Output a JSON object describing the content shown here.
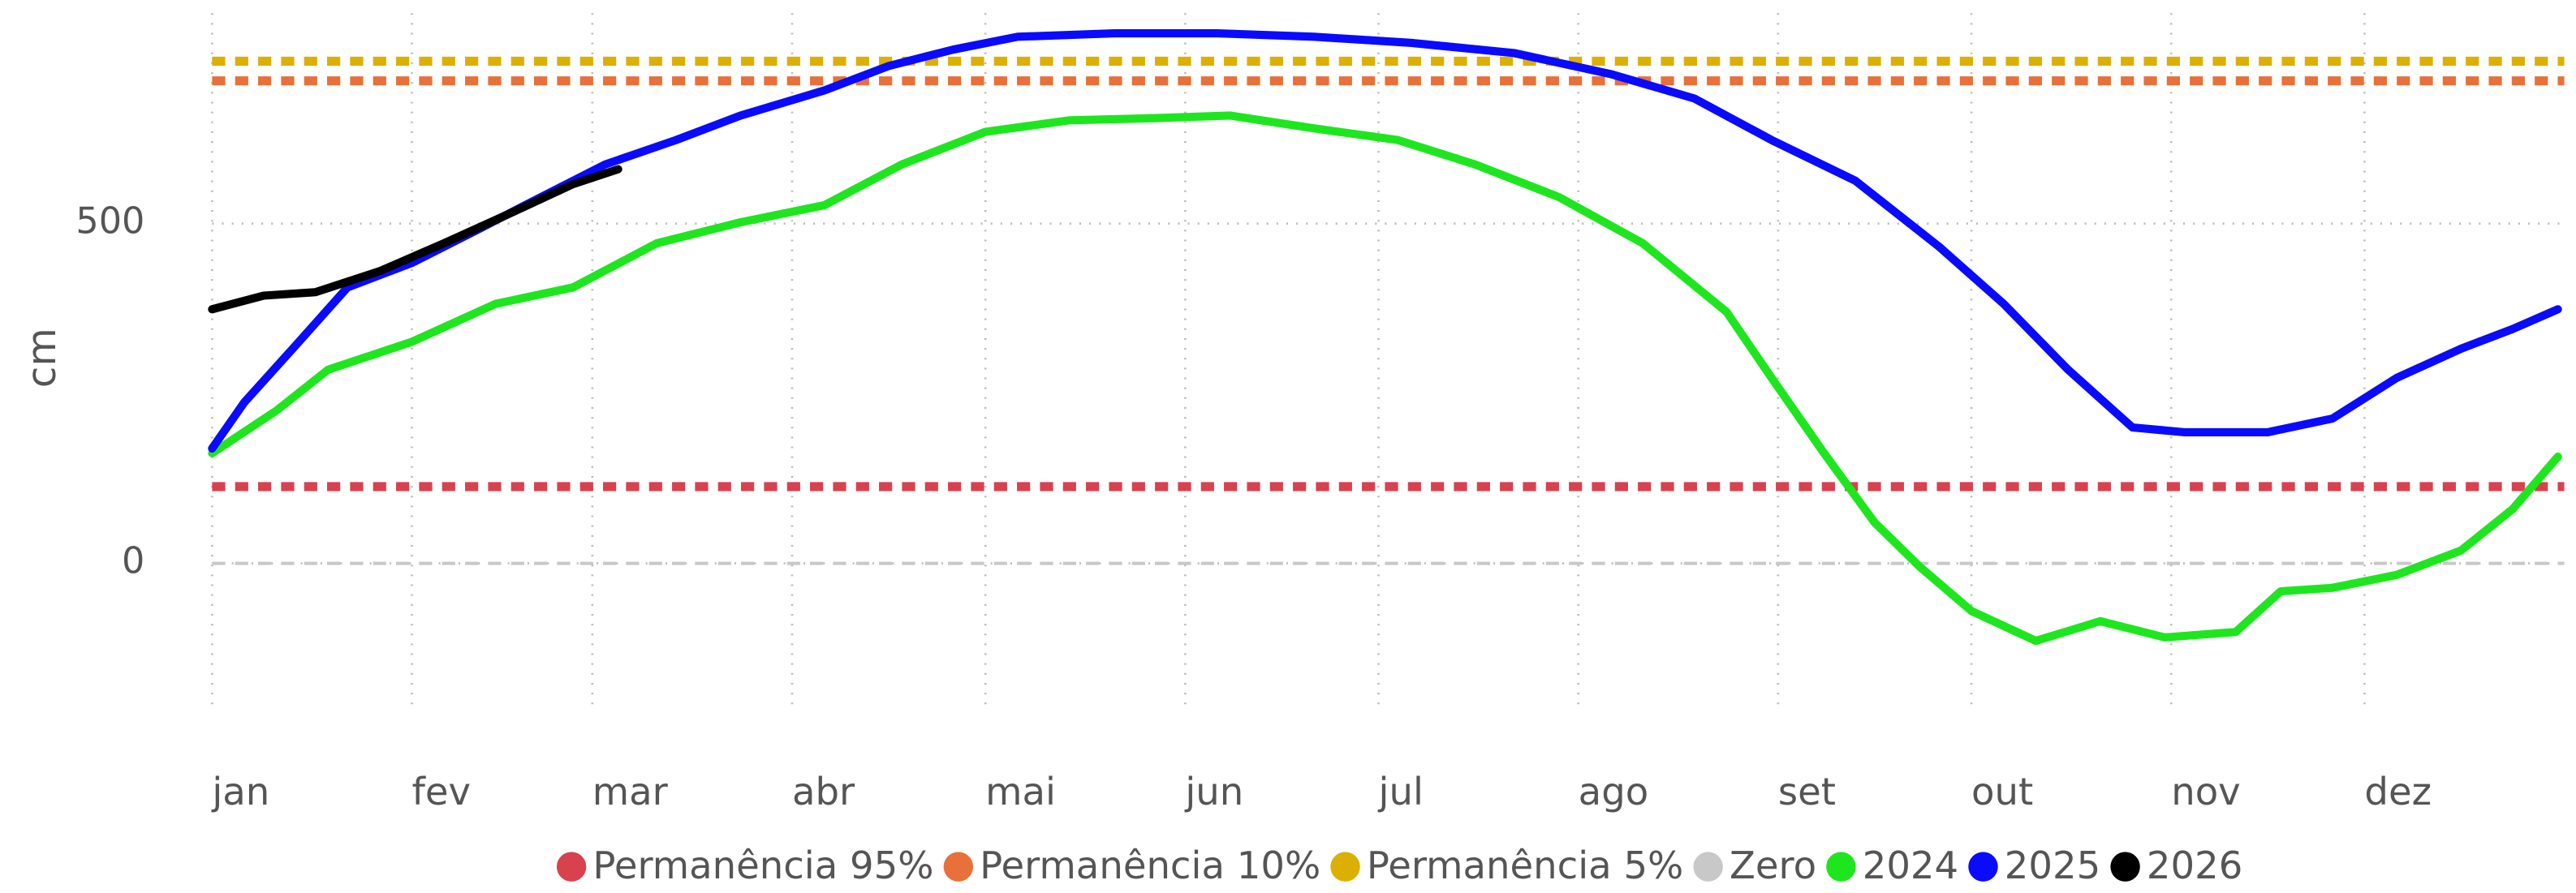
{
  "chart_data": {
    "type": "line",
    "y_label": "cm",
    "xlim": [
      0,
      365
    ],
    "xticks": [
      {
        "value": 0,
        "label": "jan"
      },
      {
        "value": 31,
        "label": "fev"
      },
      {
        "value": 59,
        "label": "mar"
      },
      {
        "value": 90,
        "label": "abr"
      },
      {
        "value": 120,
        "label": "mai"
      },
      {
        "value": 151,
        "label": "jun"
      },
      {
        "value": 181,
        "label": "jul"
      },
      {
        "value": 212,
        "label": "ago"
      },
      {
        "value": 243,
        "label": "set"
      },
      {
        "value": 273,
        "label": "out"
      },
      {
        "value": 304,
        "label": "nov"
      },
      {
        "value": 334,
        "label": "dez"
      }
    ],
    "ylim": [
      -200,
      800
    ],
    "yticks": [
      0,
      500
    ],
    "grid": true,
    "legend": "bottom",
    "series": [
      {
        "name": "Permanência 95%",
        "color": "#d9414e",
        "value": 113,
        "dashed": true
      },
      {
        "name": "Permanência 10%",
        "color": "#e8703a",
        "value": 710,
        "dashed": true
      },
      {
        "name": "Permanência 5%",
        "color": "#dcb000",
        "value": 739,
        "dashed": true
      },
      {
        "name": "Zero",
        "color": "#c8c8c8",
        "value": 0,
        "dashed": true
      },
      {
        "name": "2024",
        "color": "#1ee61e",
        "x": [
          0,
          10,
          18,
          31,
          44,
          56,
          69,
          82,
          95,
          107,
          120,
          133,
          146,
          158,
          171,
          184,
          196,
          209,
          222,
          235,
          242,
          250,
          258,
          265,
          273,
          283,
          293,
          303,
          314,
          321,
          329,
          339,
          349,
          357,
          364
        ],
        "values": [
          162,
          225,
          285,
          326,
          382,
          406,
          471,
          502,
          527,
          587,
          635,
          652,
          655,
          659,
          640,
          623,
          587,
          539,
          471,
          370,
          273,
          164,
          60,
          -5,
          -70,
          -114,
          -85,
          -109,
          -101,
          -41,
          -36,
          -17,
          19,
          80,
          157
        ]
      },
      {
        "name": "2025",
        "color": "#0a0aff",
        "x": [
          0,
          5,
          13,
          21,
          31,
          41,
          51,
          61,
          72,
          82,
          95,
          105,
          115,
          125,
          140,
          156,
          171,
          186,
          202,
          217,
          230,
          242,
          255,
          268,
          278,
          288,
          298,
          306,
          319,
          329,
          339,
          349,
          357,
          364
        ],
        "values": [
          169,
          237,
          321,
          406,
          442,
          490,
          539,
          587,
          623,
          659,
          696,
          732,
          756,
          775,
          780,
          780,
          775,
          766,
          751,
          720,
          684,
          623,
          563,
          466,
          382,
          285,
          200,
          193,
          193,
          213,
          273,
          316,
          345,
          374
        ]
      },
      {
        "name": "2026",
        "color": "#000000",
        "x": [
          0,
          8,
          16,
          26,
          36,
          46,
          56,
          63
        ],
        "values": [
          374,
          394,
          399,
          430,
          471,
          514,
          558,
          580
        ]
      }
    ]
  }
}
